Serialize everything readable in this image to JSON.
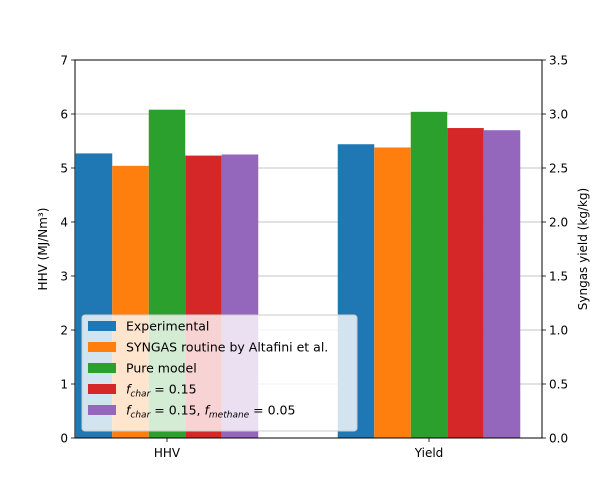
{
  "chart_data": {
    "type": "bar",
    "categories": [
      "HHV",
      "Yield"
    ],
    "series": [
      {
        "name": "Experimental",
        "color": "#1f77b4",
        "values": [
          5.27,
          2.72
        ]
      },
      {
        "name": "SYNGAS routine by Altafini et al.",
        "color": "#ff7f0e",
        "values": [
          5.04,
          2.69
        ]
      },
      {
        "name": "Pure model",
        "color": "#2ca02c",
        "values": [
          6.08,
          3.02
        ]
      },
      {
        "name": "f_char = 0.15",
        "color": "#d62728",
        "values": [
          5.23,
          2.87
        ]
      },
      {
        "name": "f_char = 0.15, f_methane = 0.05",
        "color": "#9467bd",
        "values": [
          5.25,
          2.85
        ]
      }
    ],
    "ylabel_left": "HHV (MJ/Nm³)",
    "ylabel_right": "Syngas yield (kg/kg)",
    "ylim_left": [
      0,
      7
    ],
    "ylim_right": [
      0,
      3.5
    ],
    "yticks_left": [
      "0",
      "1",
      "2",
      "3",
      "4",
      "5",
      "6",
      "7"
    ],
    "yticks_right": [
      "0.0",
      "0.5",
      "1.0",
      "1.5",
      "2.0",
      "2.5",
      "3.0",
      "3.5"
    ],
    "series_axis": [
      "left",
      "right"
    ],
    "grid": "horizontal",
    "legend_position": "lower-left"
  }
}
